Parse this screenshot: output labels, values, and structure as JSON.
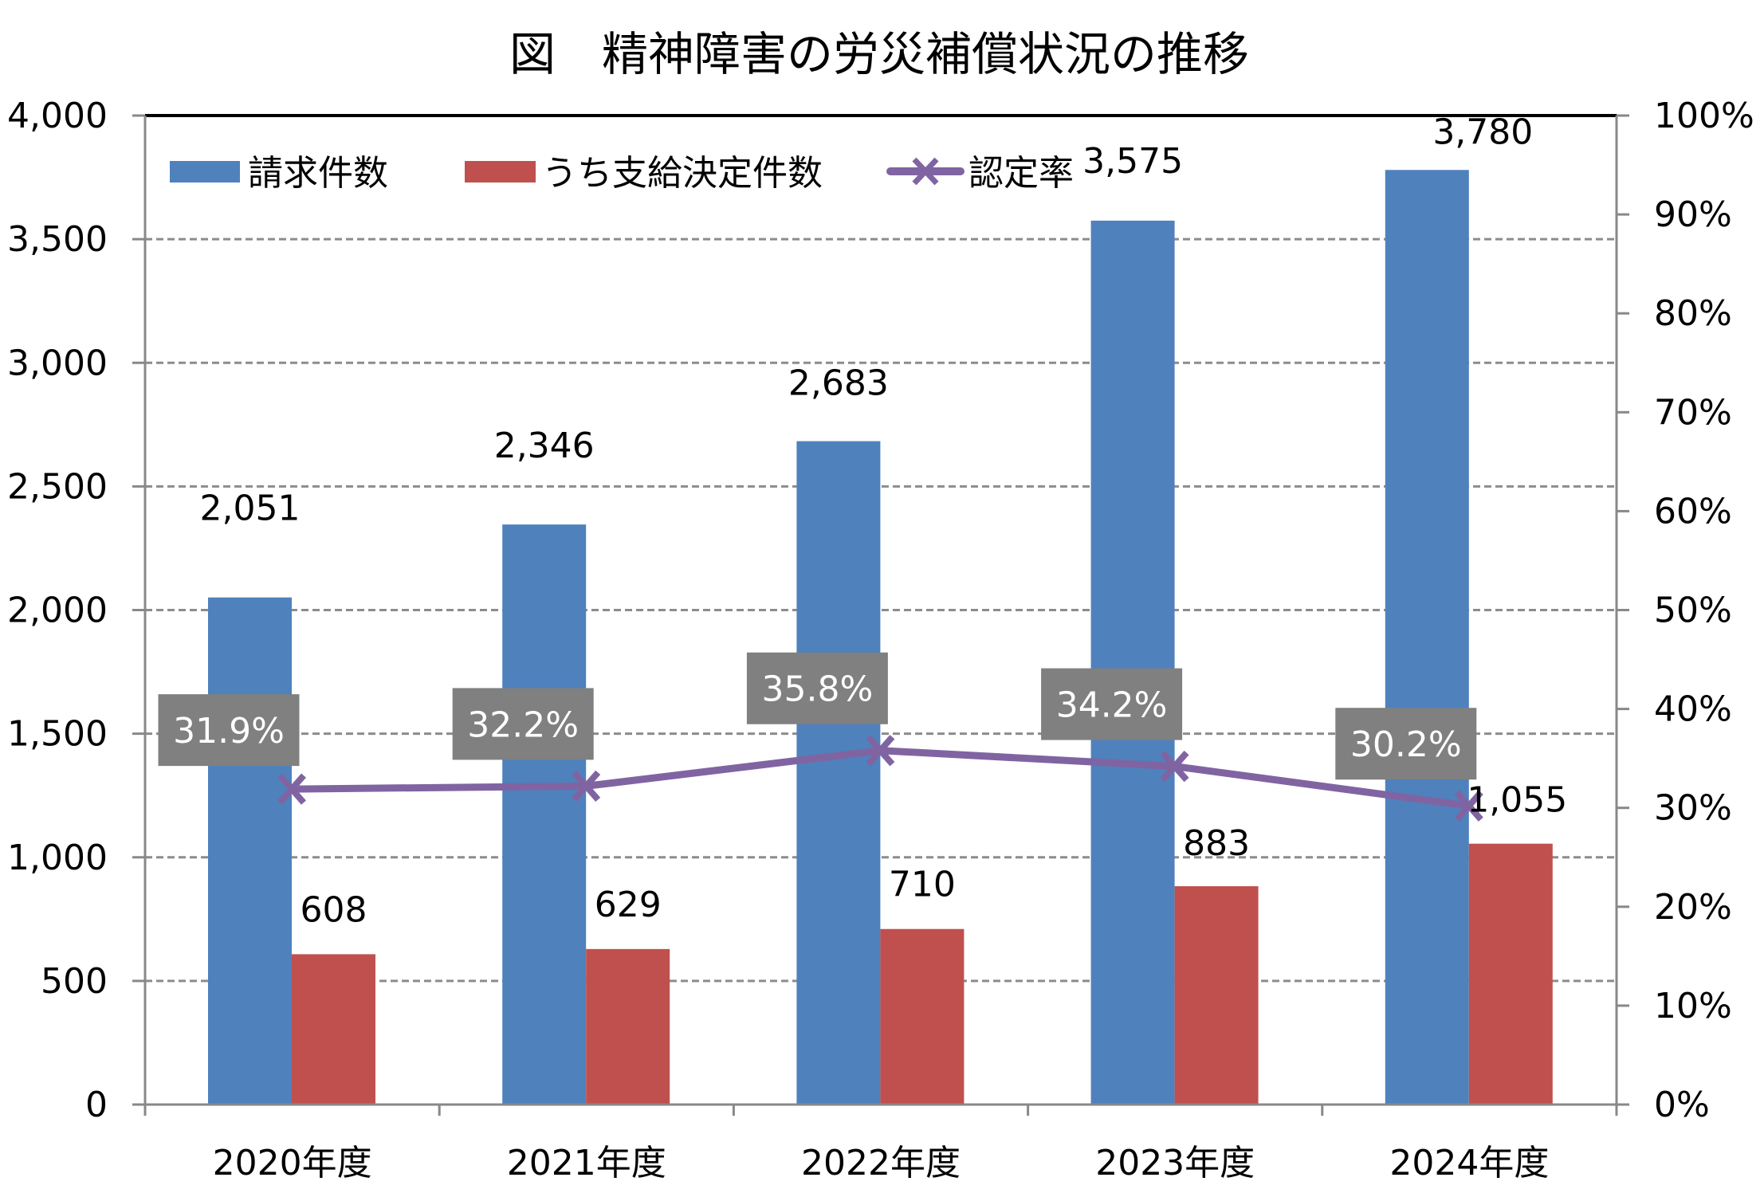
{
  "chart_data": {
    "type": "bar",
    "title": "図　精神障害の労災補償状況の推移",
    "categories": [
      "2020年度",
      "2021年度",
      "2022年度",
      "2023年度",
      "2024年度"
    ],
    "series": [
      {
        "name": "請求件数",
        "kind": "bar",
        "axis": "left",
        "color": "#4F81BD",
        "values": [
          2051,
          2346,
          2683,
          3575,
          3780
        ],
        "labels": [
          "2,051",
          "2,346",
          "2,683",
          "3,575",
          "3,780"
        ]
      },
      {
        "name": "うち支給決定件数",
        "kind": "bar",
        "axis": "left",
        "color": "#C0504D",
        "values": [
          608,
          629,
          710,
          883,
          1055
        ],
        "labels": [
          "608",
          "629",
          "710",
          "883",
          "1,055"
        ]
      },
      {
        "name": "認定率",
        "kind": "line",
        "axis": "right",
        "color": "#8064A2",
        "marker": "x",
        "values": [
          31.9,
          32.2,
          35.8,
          34.2,
          30.2
        ],
        "labels": [
          "31.9%",
          "32.2%",
          "35.8%",
          "34.2%",
          "30.2%"
        ]
      }
    ],
    "y_left": {
      "min": 0,
      "max": 4000,
      "step": 500,
      "tick_labels": [
        "0",
        "500",
        "1,000",
        "1,500",
        "2,000",
        "2,500",
        "3,000",
        "3,500",
        "4,000"
      ]
    },
    "y_right": {
      "min": 0,
      "max": 100,
      "step": 10,
      "tick_labels": [
        "0%",
        "10%",
        "20%",
        "30%",
        "40%",
        "50%",
        "60%",
        "70%",
        "80%",
        "90%",
        "100%"
      ]
    },
    "xlabel": "",
    "ylabel": "",
    "grid": "horizontal dashed (left axis)",
    "legend": "top-left inside plot",
    "percent_label_box_color": "#808080"
  }
}
